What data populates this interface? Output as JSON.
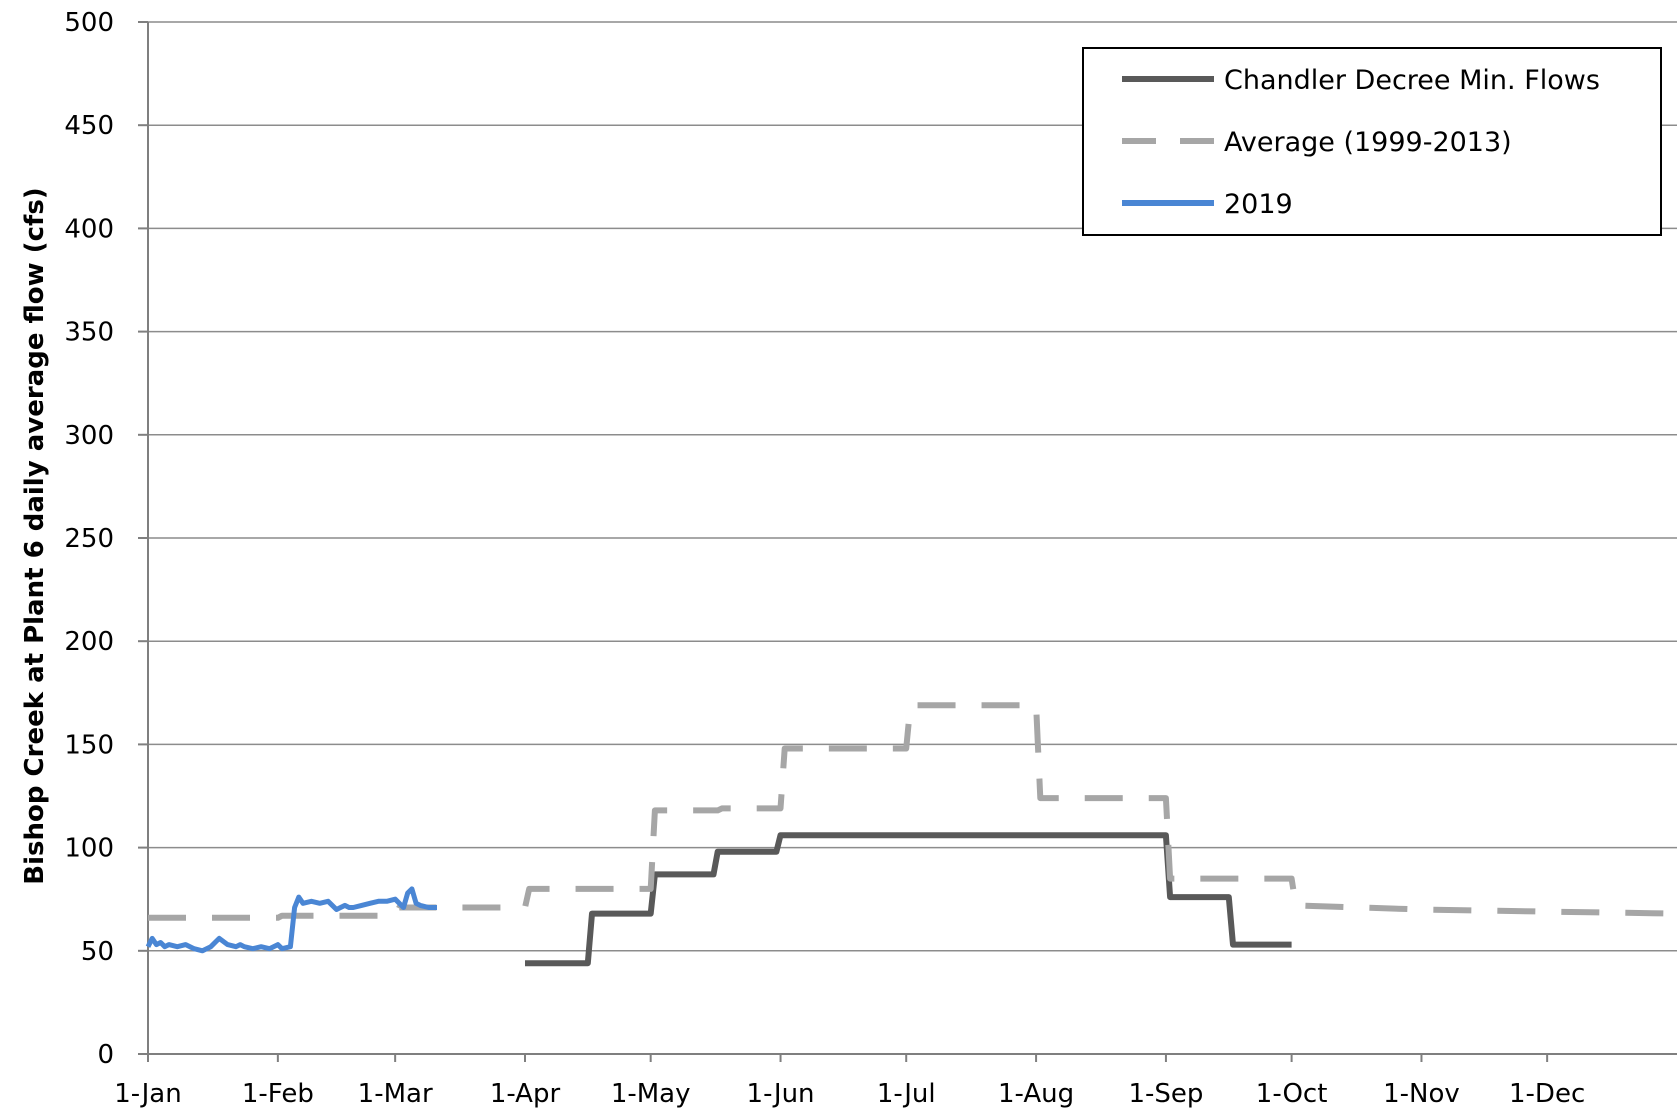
{
  "chart_data": {
    "type": "line",
    "title": "",
    "xlabel": "",
    "ylabel": "Bishop Creek at Plant 6 daily average flow (cfs)",
    "ylim": [
      0,
      500
    ],
    "y_ticks": [
      0,
      50,
      100,
      150,
      200,
      250,
      300,
      350,
      400,
      450,
      500
    ],
    "x_unit": "day of year",
    "x_ticks": [
      {
        "label": "1-Jan",
        "day": 1
      },
      {
        "label": "1-Feb",
        "day": 32
      },
      {
        "label": "1-Mar",
        "day": 60
      },
      {
        "label": "1-Apr",
        "day": 91
      },
      {
        "label": "1-May",
        "day": 121
      },
      {
        "label": "1-Jun",
        "day": 152
      },
      {
        "label": "1-Jul",
        "day": 182
      },
      {
        "label": "1-Aug",
        "day": 213
      },
      {
        "label": "1-Sep",
        "day": 244
      },
      {
        "label": "1-Oct",
        "day": 274
      },
      {
        "label": "1-Nov",
        "day": 305
      },
      {
        "label": "1-Dec",
        "day": 335
      }
    ],
    "xlim": [
      1,
      366
    ],
    "grid": "horizontal",
    "legend_position": "top-right",
    "series": [
      {
        "name": "Chandler Decree Min. Flows",
        "color": "#595959",
        "dash": "solid",
        "x": [
          91,
          106,
          107,
          121,
          122,
          136,
          137,
          151,
          152,
          166,
          244,
          245,
          259,
          260,
          274
        ],
        "y": [
          44,
          44,
          68,
          68,
          87,
          87,
          98,
          98,
          106,
          106,
          106,
          76,
          76,
          53,
          53
        ]
      },
      {
        "name": "Average (1999-2013)",
        "color": "#a6a6a6",
        "dash": "dashed",
        "x": [
          1,
          32,
          33,
          60,
          61,
          91,
          92,
          121,
          122,
          137,
          138,
          152,
          153,
          182,
          183,
          213,
          214,
          244,
          245,
          274,
          275,
          305,
          335,
          366
        ],
        "y": [
          66,
          66,
          67,
          67,
          71,
          71,
          80,
          80,
          118,
          118,
          119,
          119,
          148,
          148,
          169,
          169,
          124,
          124,
          85,
          85,
          72,
          70,
          69,
          68
        ]
      },
      {
        "name": "2019",
        "color": "#4a86d4",
        "dash": "solid",
        "x": [
          1,
          2,
          3,
          4,
          5,
          6,
          8,
          10,
          12,
          14,
          16,
          18,
          20,
          22,
          23,
          24,
          26,
          28,
          30,
          32,
          33,
          35,
          36,
          37,
          38,
          40,
          42,
          44,
          46,
          48,
          49,
          50,
          52,
          54,
          56,
          58,
          60,
          62,
          63,
          64,
          65,
          66,
          68,
          70
        ],
        "y": [
          52,
          56,
          53,
          54,
          52,
          53,
          52,
          53,
          51,
          50,
          52,
          56,
          53,
          52,
          53,
          52,
          51,
          52,
          51,
          53,
          51,
          52,
          71,
          76,
          73,
          74,
          73,
          74,
          70,
          72,
          71,
          71,
          72,
          73,
          74,
          74,
          75,
          71,
          78,
          80,
          73,
          72,
          71,
          71
        ]
      }
    ]
  }
}
